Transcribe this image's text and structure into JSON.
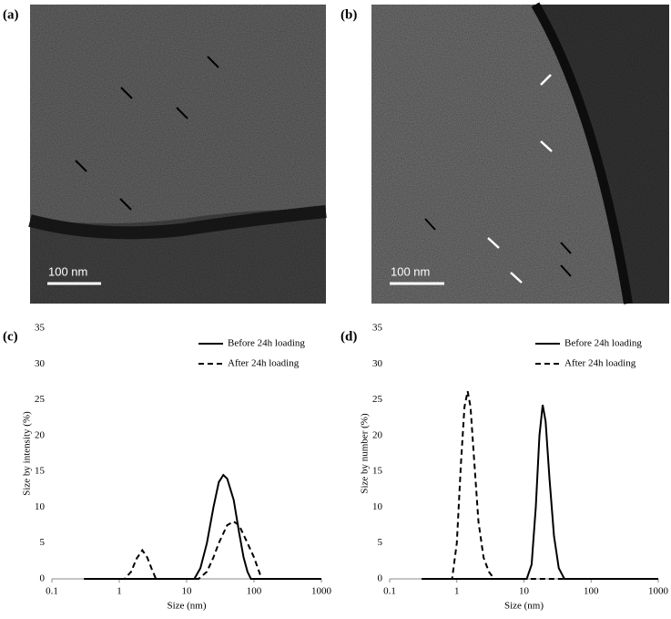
{
  "panels": [
    {
      "label": "(a)",
      "scale_bar": "100 nm"
    },
    {
      "label": "(b)",
      "scale_bar": "100 nm"
    }
  ],
  "chart_data": [
    {
      "type": "line",
      "panel_label": "(c)",
      "xlabel": "Size (nm)",
      "ylabel": "Size by intensity (%)",
      "xscale": "log",
      "xlim": [
        0.1,
        1000
      ],
      "xticks": [
        0.1,
        1,
        10,
        100,
        1000
      ],
      "ylim": [
        0,
        35
      ],
      "yticks": [
        0,
        5,
        10,
        15,
        20,
        25,
        30,
        35
      ],
      "legend": "top-right",
      "series": [
        {
          "name": "Before 24h loading",
          "color": "#000000",
          "dash": "solid",
          "x": [
            0.3,
            13,
            16,
            20,
            25,
            30,
            35,
            40,
            50,
            60,
            70,
            80,
            90,
            1000
          ],
          "values": [
            0,
            0,
            1.5,
            5,
            10,
            13.5,
            14.5,
            14,
            11,
            6.5,
            3,
            1,
            0,
            0
          ]
        },
        {
          "name": "After 24h loading",
          "color": "#000000",
          "dash": "dashed",
          "x": [
            0.3,
            1.2,
            1.5,
            1.8,
            2.2,
            2.6,
            3.0,
            3.5,
            15,
            20,
            25,
            30,
            40,
            50,
            60,
            80,
            100,
            130,
            1000
          ],
          "values": [
            0,
            0,
            1,
            2.8,
            4,
            3,
            1.5,
            0,
            0,
            1,
            3,
            5,
            7.5,
            8,
            7.5,
            5,
            3,
            0,
            0
          ]
        }
      ]
    },
    {
      "type": "line",
      "panel_label": "(d)",
      "xlabel": "Size (nm)",
      "ylabel": "Size by number (%)",
      "xscale": "log",
      "xlim": [
        0.1,
        1000
      ],
      "xticks": [
        0.1,
        1,
        10,
        100,
        1000
      ],
      "ylim": [
        0,
        35
      ],
      "yticks": [
        0,
        5,
        10,
        15,
        20,
        25,
        30,
        35
      ],
      "legend": "top-right",
      "series": [
        {
          "name": "Before 24h loading",
          "color": "#000000",
          "dash": "solid",
          "x": [
            0.3,
            11,
            13,
            15,
            17,
            19,
            21,
            24,
            28,
            33,
            40,
            1000
          ],
          "values": [
            0,
            0,
            2,
            10,
            20,
            24.3,
            22,
            14,
            6,
            1.5,
            0,
            0
          ]
        },
        {
          "name": "After 24h loading",
          "color": "#000000",
          "dash": "dashed",
          "x": [
            0.3,
            0.85,
            1.0,
            1.15,
            1.3,
            1.45,
            1.6,
            1.8,
            2.1,
            2.5,
            3.0,
            3.6,
            1000
          ],
          "values": [
            0,
            0,
            5,
            16,
            24,
            26.2,
            24,
            17,
            8,
            3,
            1,
            0,
            0
          ]
        }
      ]
    }
  ]
}
